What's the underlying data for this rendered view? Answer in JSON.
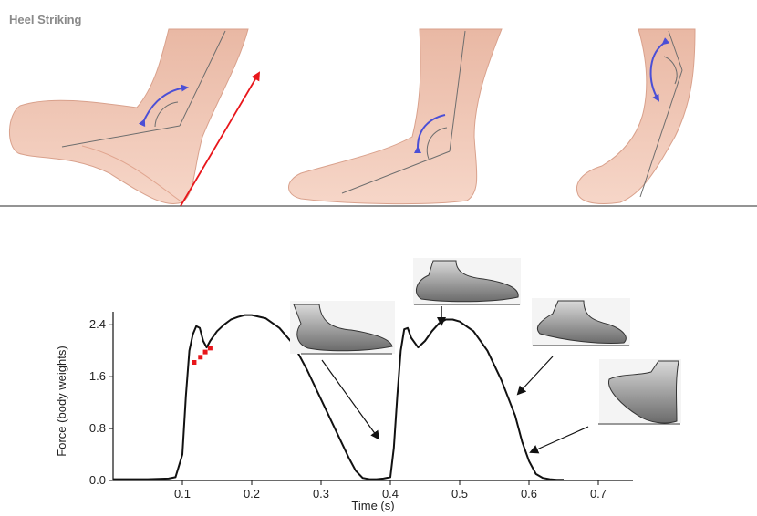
{
  "panel_title": "Heel Striking",
  "chart_data": {
    "type": "line",
    "xlabel": "Time (s)",
    "ylabel": "Force (body weights)",
    "xlim": [
      0,
      0.75
    ],
    "ylim": [
      0,
      2.6
    ],
    "x_ticks": [
      "0.1",
      "0.2",
      "0.3",
      "0.4",
      "0.5",
      "0.6",
      "0.7"
    ],
    "y_ticks": [
      "0.0",
      "0.8",
      "1.6",
      "2.4"
    ],
    "grid": false,
    "series": [
      {
        "x": [
          0.0,
          0.05,
          0.08,
          0.09,
          0.1,
          0.105,
          0.11,
          0.115,
          0.12,
          0.125,
          0.13,
          0.135,
          0.14,
          0.15,
          0.16,
          0.17,
          0.18,
          0.19,
          0.2,
          0.22,
          0.24,
          0.26,
          0.28,
          0.3,
          0.32,
          0.34,
          0.35,
          0.36,
          0.37,
          0.38,
          0.39,
          0.4,
          0.405,
          0.41,
          0.415,
          0.42,
          0.425,
          0.43,
          0.44,
          0.45,
          0.46,
          0.47,
          0.48,
          0.49,
          0.5,
          0.52,
          0.54,
          0.56,
          0.58,
          0.59,
          0.6,
          0.61,
          0.62,
          0.63,
          0.64,
          0.65
        ],
        "y": [
          0.02,
          0.02,
          0.03,
          0.05,
          0.4,
          1.3,
          2.0,
          2.25,
          2.38,
          2.35,
          2.15,
          2.05,
          2.15,
          2.3,
          2.4,
          2.48,
          2.52,
          2.55,
          2.55,
          2.5,
          2.35,
          2.1,
          1.7,
          1.25,
          0.8,
          0.35,
          0.15,
          0.04,
          0.02,
          0.02,
          0.03,
          0.05,
          0.5,
          1.3,
          2.0,
          2.33,
          2.35,
          2.2,
          2.05,
          2.15,
          2.3,
          2.42,
          2.48,
          2.48,
          2.45,
          2.3,
          2.0,
          1.55,
          1.0,
          0.6,
          0.3,
          0.1,
          0.04,
          0.02,
          0.01,
          0.01
        ]
      }
    ],
    "highlight_points": {
      "color": "#e8161b",
      "x": [
        0.117,
        0.126,
        0.133,
        0.14
      ],
      "y": [
        1.82,
        1.9,
        1.98,
        2.04
      ]
    }
  },
  "colors": {
    "curve": "#111111",
    "force_arrow": "#e8161b",
    "rotation_arrow": "#4b4fd6",
    "skin": "#f0c7b4",
    "ground": "#555555"
  },
  "icons": [
    "foot-heel-strike",
    "foot-mid-stance",
    "foot-toe-off",
    "shoe-heel-contact",
    "shoe-mid-stance",
    "shoe-heel-rise",
    "shoe-toe-off"
  ]
}
